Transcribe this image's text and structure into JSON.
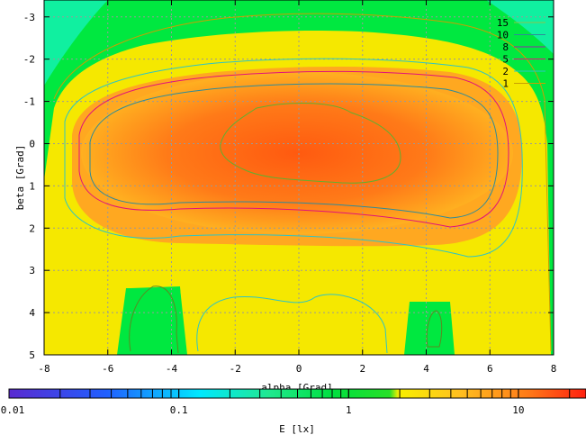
{
  "chart_data": {
    "type": "heatmap",
    "title": "",
    "xlabel": "alpha [Grad]",
    "ylabel": "beta [Grad]",
    "xlim": [
      -8,
      8
    ],
    "ylim": [
      -3.4,
      5
    ],
    "y_inverted": true,
    "x_ticks": [
      "-8",
      "-6",
      "-4",
      "-2",
      "0",
      "2",
      "4",
      "6",
      "8"
    ],
    "y_ticks": [
      "-3",
      "-2",
      "-1",
      "0",
      "1",
      "2",
      "3",
      "4",
      "5"
    ],
    "grid": true,
    "colorbar": {
      "label": "E [lx]",
      "scale": "log",
      "range": [
        0.01,
        25
      ],
      "ticks": [
        "0.01",
        "0.1",
        "1",
        "10"
      ]
    },
    "contour_levels": [
      "15",
      "10",
      "8",
      "5",
      "2",
      "1"
    ],
    "contour_colors": [
      "#8bc34a",
      "#2e8b9a",
      "#8e2ca8",
      "#e0127a",
      "#2ec4c4",
      "#c8a000"
    ],
    "legend_position": "top-right"
  }
}
